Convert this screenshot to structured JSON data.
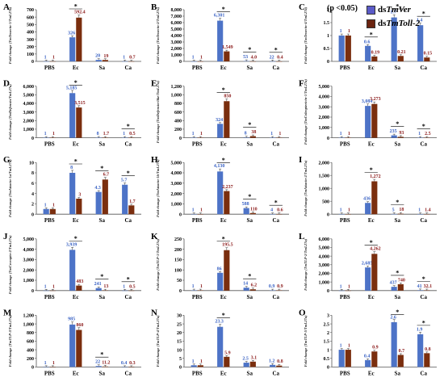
{
  "legend": {
    "items": [
      {
        "prefix": "ds",
        "name": "TmVer",
        "color": "#5b5bc8"
      },
      {
        "prefix": "ds",
        "name": "TmToll-2",
        "color": "#6b2410"
      }
    ]
  },
  "pvalue_note": "(p <0.05)",
  "colors": {
    "ctrl": "#4d73c7",
    "ko": "#7a2e0e",
    "ctrl_label": "#3b63c4",
    "ko_label": "#8b1a1a"
  },
  "chart_data": [
    {
      "panel": "A",
      "type": "bar",
      "ylabel": "Fold change (TmTenecin-1/TmL27a)",
      "categories": [
        "PBS",
        "Ec",
        "Sa",
        "Ca"
      ],
      "ylim": [
        0,
        700
      ],
      "yticks": [
        0,
        100,
        200,
        300,
        400,
        500,
        600,
        700
      ],
      "series": [
        {
          "name": "dsTmVer",
          "values": [
            1,
            326,
            20,
            1
          ]
        },
        {
          "name": "dsTmToll-2",
          "values": [
            1,
            592.4,
            19,
            0.7
          ]
        }
      ],
      "labels": [
        [
          "1",
          "1"
        ],
        [
          "326",
          "592.4"
        ],
        [
          "20",
          "19"
        ],
        [
          "1",
          "0.7"
        ]
      ],
      "sig": [
        1
      ]
    },
    {
      "panel": "B",
      "type": "bar",
      "ylabel": "Fold change (TmTenecin-2/TmL27a)",
      "categories": [
        "PBS",
        "Ec",
        "Sa",
        "Ca"
      ],
      "ylim": [
        0,
        8000
      ],
      "yticks": [
        0,
        1000,
        2000,
        3000,
        4000,
        5000,
        6000,
        7000,
        8000
      ],
      "series": [
        {
          "name": "dsTmVer",
          "values": [
            1,
            6301,
            53,
            22
          ]
        },
        {
          "name": "dsTmToll-2",
          "values": [
            1,
            1549,
            4,
            0.4
          ]
        }
      ],
      "labels": [
        [
          "1",
          "1"
        ],
        [
          "6,301",
          "1,549"
        ],
        [
          "53",
          "4.0"
        ],
        [
          "22",
          "0.4"
        ]
      ],
      "sig": [
        1,
        2,
        3
      ]
    },
    {
      "panel": "C",
      "type": "bar",
      "ylabel": "Fold change (TmTenecin-4/TmL27a)",
      "categories": [
        "PBS",
        "Ec",
        "Sa",
        "Ca"
      ],
      "ylim": [
        0,
        2
      ],
      "yticks": [
        0,
        0.5,
        1,
        1.5,
        2
      ],
      "series": [
        {
          "name": "dsTmVer",
          "values": [
            1,
            0.6,
            1.7,
            1.4
          ]
        },
        {
          "name": "dsTmToll-2",
          "values": [
            1,
            0.19,
            0.21,
            0.15
          ]
        }
      ],
      "labels": [
        [
          "1",
          "1"
        ],
        [
          "0.6",
          "0.19"
        ],
        [
          "1.7",
          "0.21"
        ],
        [
          "1.4",
          "0.15"
        ]
      ],
      "sig": [
        1,
        2,
        3
      ]
    },
    {
      "panel": "D",
      "type": "bar",
      "ylabel": "Fold change (TmDefensin/TmL27a)",
      "categories": [
        "PBS",
        "Ec",
        "Sa",
        "Ca"
      ],
      "ylim": [
        0,
        6000
      ],
      "yticks": [
        0,
        1000,
        2000,
        3000,
        4000,
        5000,
        6000
      ],
      "series": [
        {
          "name": "dsTmVer",
          "values": [
            1,
            5185,
            8,
            1
          ]
        },
        {
          "name": "dsTmToll-2",
          "values": [
            1,
            3515,
            1.7,
            0.5
          ]
        }
      ],
      "labels": [
        [
          "1",
          "1"
        ],
        [
          "5,185",
          "3,515"
        ],
        [
          "8",
          "1.7"
        ],
        [
          "1",
          "0.5"
        ]
      ],
      "sig": [
        1,
        3
      ]
    },
    {
      "panel": "E",
      "type": "bar",
      "ylabel": "Fold change (TmDefensin-like/TmL27a)",
      "categories": [
        "PBS",
        "Ec",
        "Sa",
        "Ca"
      ],
      "ylim": [
        0,
        1200
      ],
      "yticks": [
        0,
        200,
        400,
        600,
        800,
        1000,
        1200
      ],
      "series": [
        {
          "name": "dsTmVer",
          "values": [
            1,
            324,
            8,
            1
          ]
        },
        {
          "name": "dsTmToll-2",
          "values": [
            1,
            850,
            38,
            1
          ]
        }
      ],
      "labels": [
        [
          "1",
          "1"
        ],
        [
          "324",
          "850"
        ],
        [
          "8",
          "38"
        ],
        [
          "1",
          "1"
        ]
      ],
      "sig": [
        1,
        2
      ]
    },
    {
      "panel": "F",
      "type": "bar",
      "ylabel": "Fold change (TmColeoptericin-1/TmL27a)",
      "categories": [
        "PBS",
        "Ec",
        "Sa",
        "Ca"
      ],
      "ylim": [
        0,
        5000
      ],
      "yticks": [
        0,
        1000,
        2000,
        3000,
        4000,
        5000
      ],
      "series": [
        {
          "name": "dsTmVer",
          "values": [
            1,
            3084,
            235,
            1
          ]
        },
        {
          "name": "dsTmToll-2",
          "values": [
            1,
            3273,
            93,
            2.5
          ]
        }
      ],
      "labels": [
        [
          "1",
          "1"
        ],
        [
          "3,084",
          "3,273"
        ],
        [
          "235",
          "93"
        ],
        [
          "1",
          "2.5"
        ]
      ],
      "sig": [
        2,
        3
      ]
    },
    {
      "panel": "G",
      "type": "bar",
      "ylabel": "Fold change (TmAttacin-1a/TmL27a)",
      "categories": [
        "PBS",
        "Ec",
        "Sa",
        "Ca"
      ],
      "ylim": [
        0,
        10
      ],
      "yticks": [
        0,
        2,
        4,
        6,
        8,
        10
      ],
      "series": [
        {
          "name": "dsTmVer",
          "values": [
            1,
            8,
            4.3,
            5.7
          ]
        },
        {
          "name": "dsTmToll-2",
          "values": [
            1,
            3,
            6.7,
            1.7
          ]
        }
      ],
      "labels": [
        [
          "1",
          "1"
        ],
        [
          "8",
          "3"
        ],
        [
          "4.3",
          "6.7"
        ],
        [
          "5.7",
          "1.7"
        ]
      ],
      "sig": [
        1,
        2,
        3
      ]
    },
    {
      "panel": "H",
      "type": "bar",
      "ylabel": "Fold change (TmAttacin-1b/TmL27a)",
      "categories": [
        "PBS",
        "Ec",
        "Sa",
        "Ca"
      ],
      "ylim": [
        0,
        5000
      ],
      "yticks": [
        0,
        1000,
        2000,
        3000,
        4000,
        5000
      ],
      "series": [
        {
          "name": "dsTmVer",
          "values": [
            1,
            4130,
            588,
            4
          ]
        },
        {
          "name": "dsTmToll-2",
          "values": [
            1,
            2237,
            110,
            0.6
          ]
        }
      ],
      "labels": [
        [
          "1",
          "1"
        ],
        [
          "4,130",
          "2,237"
        ],
        [
          "588",
          "110"
        ],
        [
          "4",
          "0.6"
        ]
      ],
      "sig": [
        1,
        2,
        3
      ]
    },
    {
      "panel": "I",
      "type": "bar",
      "ylabel": "Fold change (TmAttacin-2/TmL27a)",
      "categories": [
        "PBS",
        "Ec",
        "Sa",
        "Ca"
      ],
      "ylim": [
        0,
        2000
      ],
      "yticks": [
        0,
        500,
        1000,
        1500,
        2000
      ],
      "series": [
        {
          "name": "dsTmVer",
          "values": [
            1,
            436,
            5,
            1
          ]
        },
        {
          "name": "dsTmToll-2",
          "values": [
            1,
            1272,
            18,
            1.4
          ]
        }
      ],
      "labels": [
        [
          "1",
          "1"
        ],
        [
          "436",
          "1,272"
        ],
        [
          "5",
          "18"
        ],
        [
          "1",
          "1.4"
        ]
      ],
      "sig": [
        1,
        2
      ]
    },
    {
      "panel": "J",
      "type": "bar",
      "ylabel": "Fold change (TmCecropin-2/TmL27a)",
      "categories": [
        "PBS",
        "Ec",
        "Sa",
        "Ca"
      ],
      "ylim": [
        0,
        5000
      ],
      "yticks": [
        0,
        1000,
        2000,
        3000,
        4000,
        5000
      ],
      "series": [
        {
          "name": "dsTmVer",
          "values": [
            1,
            3939,
            241,
            1
          ]
        },
        {
          "name": "dsTmToll-2",
          "values": [
            1,
            483,
            13,
            0.5
          ]
        }
      ],
      "labels": [
        [
          "1",
          "1"
        ],
        [
          "3,939",
          "483"
        ],
        [
          "241",
          "13"
        ],
        [
          "1",
          "0.5"
        ]
      ],
      "sig": [
        1,
        2,
        3
      ]
    },
    {
      "panel": "K",
      "type": "bar",
      "ylabel": "Fold change (TmTLP-1/TmL27a)",
      "categories": [
        "PBS",
        "Ec",
        "Sa",
        "Ca"
      ],
      "ylim": [
        0,
        250
      ],
      "yticks": [
        0,
        50,
        100,
        150,
        200,
        250
      ],
      "series": [
        {
          "name": "dsTmVer",
          "values": [
            1,
            86,
            14,
            0.9
          ]
        },
        {
          "name": "dsTmToll-2",
          "values": [
            1,
            195.5,
            6.2,
            0.9
          ]
        }
      ],
      "labels": [
        [
          "1",
          "1"
        ],
        [
          "86",
          "195.5"
        ],
        [
          "14",
          "6.2"
        ],
        [
          "0.9",
          "0.9"
        ]
      ],
      "sig": [
        1,
        2
      ]
    },
    {
      "panel": "L",
      "type": "bar",
      "ylabel": "Fold change (TmTLP-2/TmL27a)",
      "categories": [
        "PBS",
        "Ec",
        "Sa",
        "Ca"
      ],
      "ylim": [
        0,
        6000
      ],
      "yticks": [
        0,
        1000,
        2000,
        3000,
        4000,
        5000,
        6000
      ],
      "series": [
        {
          "name": "dsTmVer",
          "values": [
            1,
            2685,
            437,
            41
          ]
        },
        {
          "name": "dsTmToll-2",
          "values": [
            1,
            4262,
            740,
            32.1
          ]
        }
      ],
      "labels": [
        [
          "1",
          "1"
        ],
        [
          "2,685",
          "4,262"
        ],
        [
          "437",
          "740"
        ],
        [
          "41",
          "32.1"
        ]
      ],
      "sig": [
        1,
        2,
        3
      ]
    },
    {
      "panel": "M",
      "type": "bar",
      "ylabel": "Fold change (TmTLP-3/TmL27a)",
      "categories": [
        "PBS",
        "Ec",
        "Sa",
        "Ca"
      ],
      "ylim": [
        0,
        1200
      ],
      "yticks": [
        0,
        200,
        400,
        600,
        800,
        1000,
        1200
      ],
      "series": [
        {
          "name": "dsTmVer",
          "values": [
            1,
            985,
            22,
            0.4
          ]
        },
        {
          "name": "dsTmToll-2",
          "values": [
            1,
            860,
            11.2,
            0.3
          ]
        }
      ],
      "labels": [
        [
          "1",
          "1"
        ],
        [
          "985",
          "860"
        ],
        [
          "22",
          "11.2"
        ],
        [
          "0.4",
          "0.3"
        ]
      ],
      "sig": [
        2
      ]
    },
    {
      "panel": "N",
      "type": "bar",
      "ylabel": "Fold change (TmTLP-4/TmL27a)",
      "categories": [
        "PBS",
        "Ec",
        "Sa",
        "Ca"
      ],
      "ylim": [
        0,
        30
      ],
      "yticks": [
        0,
        5,
        10,
        15,
        20,
        25,
        30
      ],
      "series": [
        {
          "name": "dsTmVer",
          "values": [
            1,
            23.3,
            2.5,
            1.2
          ]
        },
        {
          "name": "dsTmToll-2",
          "values": [
            1,
            5.9,
            3.1,
            0.8
          ]
        }
      ],
      "labels": [
        [
          "1",
          "1"
        ],
        [
          "23.3",
          "5.9"
        ],
        [
          "2.5",
          "3.1"
        ],
        [
          "1.2",
          "0.8"
        ]
      ],
      "sig": [
        1
      ]
    },
    {
      "panel": "O",
      "type": "bar",
      "ylabel": "Fold change (TmTLP-5/TmL27a)",
      "categories": [
        "PBS",
        "Ec",
        "Sa",
        "Ca"
      ],
      "ylim": [
        0,
        3
      ],
      "yticks": [
        0,
        0.5,
        1,
        1.5,
        2,
        2.5,
        3
      ],
      "series": [
        {
          "name": "dsTmVer",
          "values": [
            1,
            0.4,
            2.6,
            1.9
          ]
        },
        {
          "name": "dsTmToll-2",
          "values": [
            1,
            0.9,
            0.7,
            0.8
          ]
        }
      ],
      "labels": [
        [
          "1",
          "1"
        ],
        [
          "0.4",
          "0.9"
        ],
        [
          "2.6",
          "0.7"
        ],
        [
          "1.9",
          "0.8"
        ]
      ],
      "sig": [
        2,
        3
      ]
    }
  ]
}
